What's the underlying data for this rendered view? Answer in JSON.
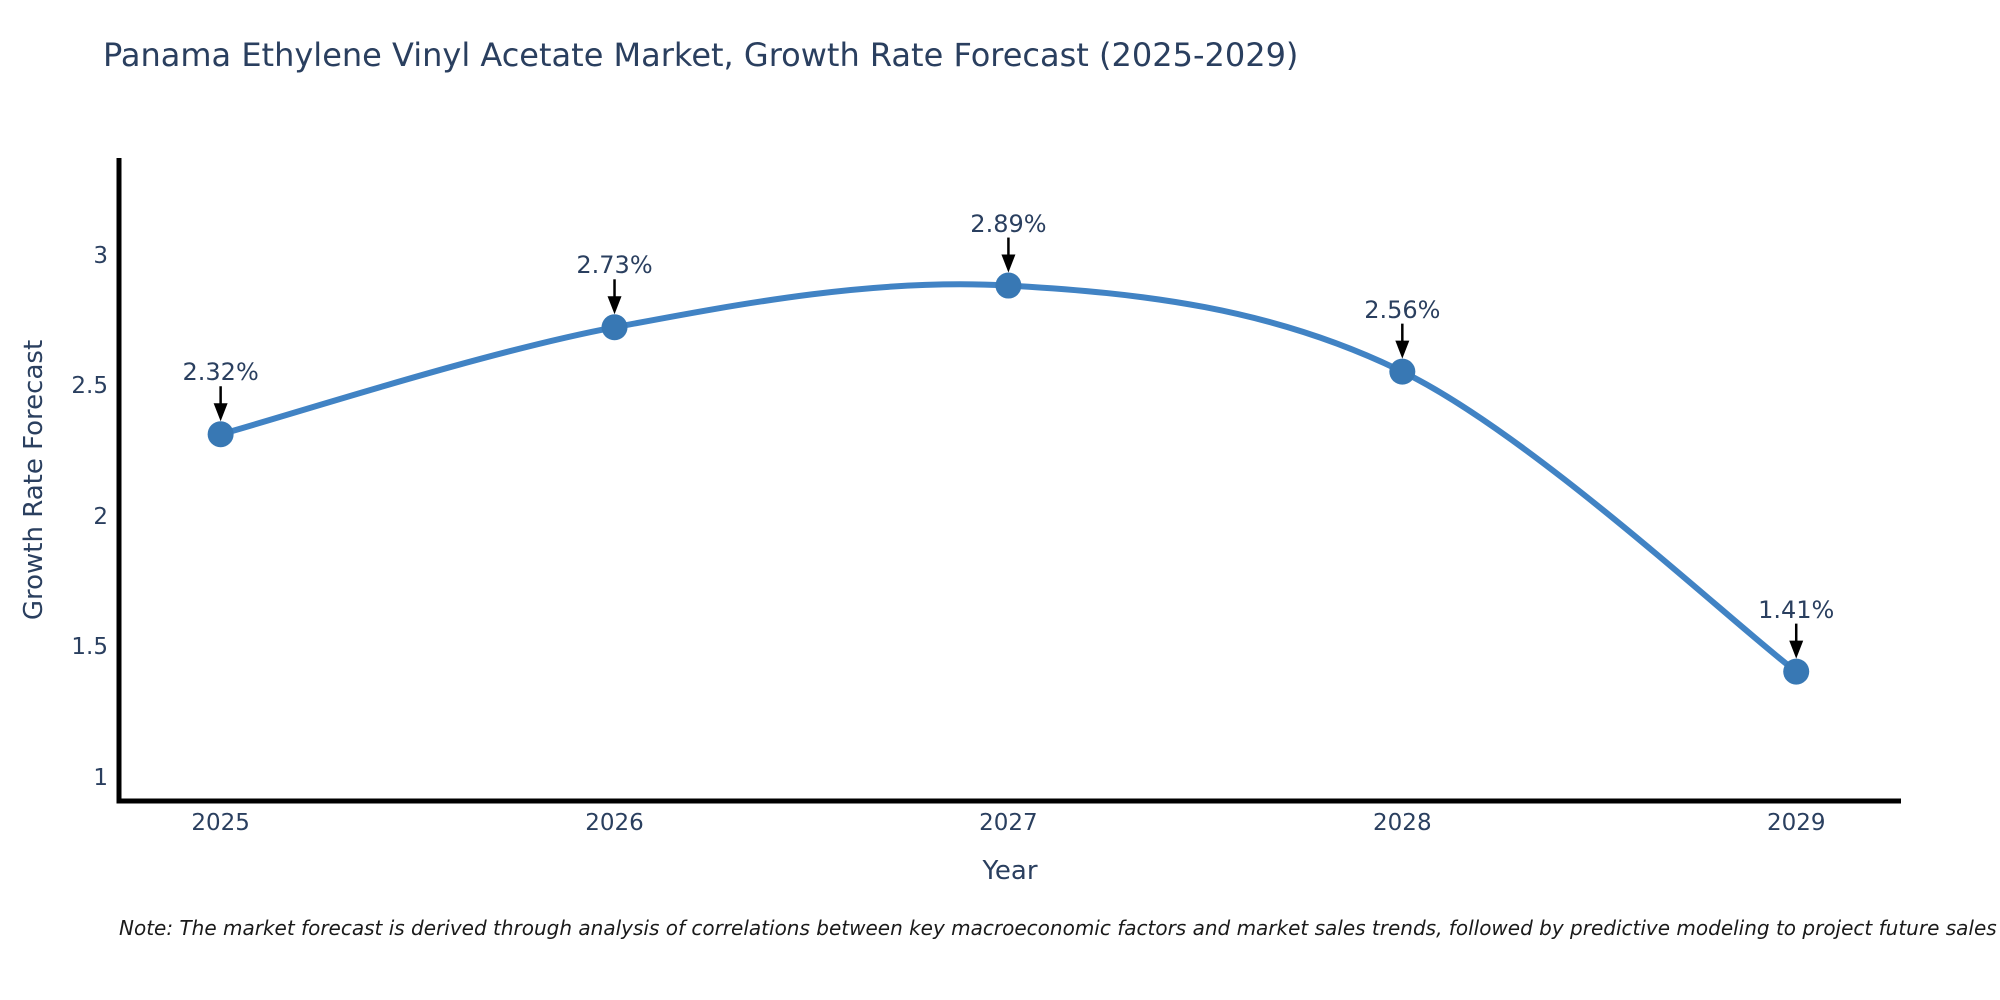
{
  "chart_data": {
    "type": "line",
    "title": "Panama Ethylene Vinyl Acetate Market, Growth Rate Forecast (2025-2029)",
    "xlabel": "Year",
    "ylabel": "Growth Rate Forecast",
    "x": [
      2025,
      2026,
      2027,
      2028,
      2029
    ],
    "y": [
      2.32,
      2.73,
      2.89,
      2.56,
      1.41
    ],
    "point_labels": [
      "2.32%",
      "2.73%",
      "2.89%",
      "2.56%",
      "1.41%"
    ],
    "x_tick_labels": [
      "2025",
      "2026",
      "2027",
      "2028",
      "2029"
    ],
    "y_ticks": [
      1,
      1.5,
      2,
      2.5,
      3
    ],
    "y_tick_labels": [
      "1",
      "1.5",
      "2",
      "2.5",
      "3"
    ],
    "x_range": [
      2024.742,
      2029.266
    ],
    "y_range": [
      0.914,
      3.379
    ],
    "line_shape": "spline",
    "grid": false,
    "legend": "none",
    "annotations_have_arrows": true,
    "colors": {
      "line": "#4183c4",
      "marker": "#3878b4",
      "axis": "#000000",
      "text": "#2a3f5f",
      "annotation_arrow": "#000000",
      "note_text": "#1a1a1a",
      "background": "#ffffff"
    }
  },
  "note": "Note: The market forecast is derived through analysis of correlations between key macroeconomic factors and market sales trends, followed by predictive modeling to project future sales"
}
